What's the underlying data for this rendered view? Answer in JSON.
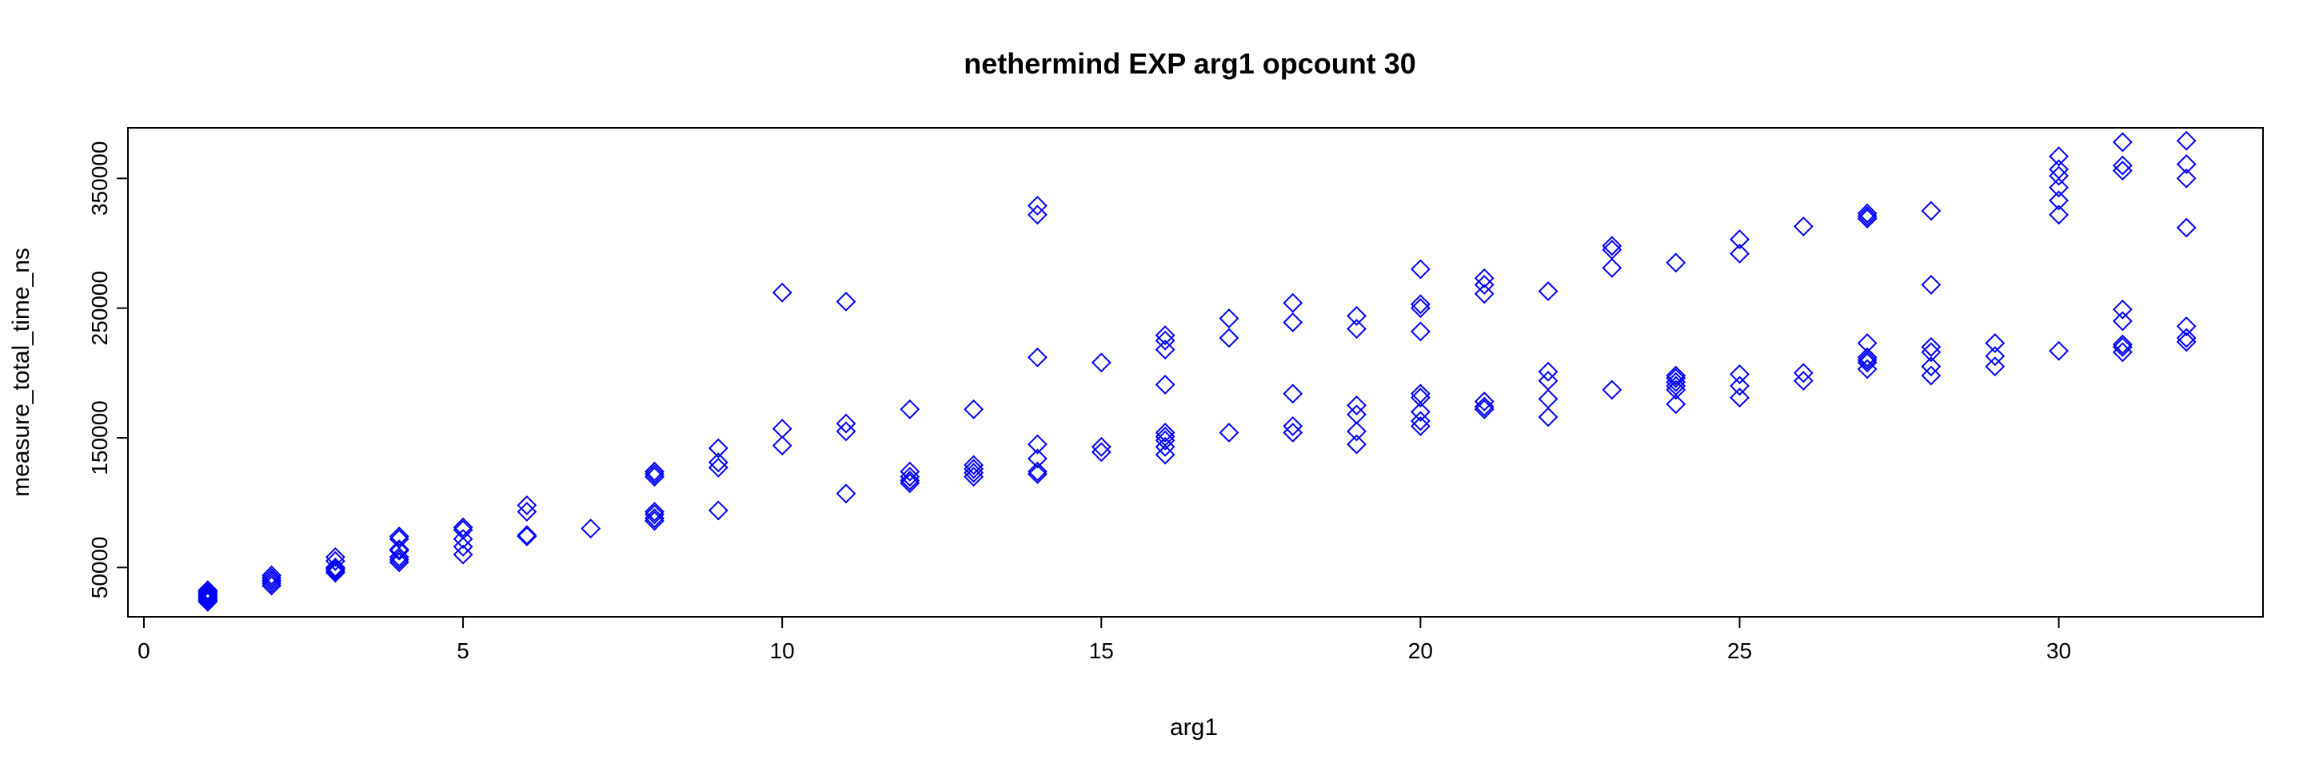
{
  "chart_data": {
    "type": "scatter",
    "title": "nethermind EXP arg1 opcount 30",
    "xlabel": "arg1",
    "ylabel": "measure_total_time_ns",
    "xlim": [
      -0.25,
      33.2
    ],
    "ylim": [
      12000,
      389000
    ],
    "x_ticks": [
      0,
      5,
      10,
      15,
      20,
      25,
      30
    ],
    "x_tick_labels": [
      "0",
      "5",
      "10",
      "15",
      "20",
      "25",
      "30"
    ],
    "y_ticks": [
      50000,
      150000,
      250000,
      350000
    ],
    "y_tick_labels": [
      "50000",
      "150000",
      "250000",
      "350000"
    ],
    "grid": false,
    "marker": "diamond",
    "marker_color": "#0000ff",
    "series": [
      {
        "points": [
          [
            1,
            23500
          ],
          [
            1,
            24500
          ],
          [
            1,
            25500
          ],
          [
            1,
            26500
          ],
          [
            1,
            27500
          ],
          [
            1,
            28500
          ],
          [
            1,
            29500
          ],
          [
            1,
            30500
          ],
          [
            1,
            31500
          ],
          [
            1,
            32500
          ],
          [
            2,
            36000
          ],
          [
            2,
            38000
          ],
          [
            2,
            40000
          ],
          [
            2,
            42000
          ],
          [
            2,
            44000
          ],
          [
            3,
            46000
          ],
          [
            3,
            47500
          ],
          [
            3,
            49000
          ],
          [
            3,
            50000
          ],
          [
            3,
            55000
          ],
          [
            3,
            58000
          ],
          [
            4,
            54000
          ],
          [
            4,
            56000
          ],
          [
            4,
            58000
          ],
          [
            4,
            63000
          ],
          [
            4,
            64000
          ],
          [
            4,
            72000
          ],
          [
            4,
            74000
          ],
          [
            5,
            60000
          ],
          [
            5,
            66000
          ],
          [
            5,
            72000
          ],
          [
            5,
            79000
          ],
          [
            5,
            81000
          ],
          [
            6,
            74000
          ],
          [
            6,
            75000
          ],
          [
            6,
            93000
          ],
          [
            6,
            98000
          ],
          [
            7,
            80000
          ],
          [
            8,
            86000
          ],
          [
            8,
            88000
          ],
          [
            8,
            91000
          ],
          [
            8,
            93000
          ],
          [
            8,
            120000
          ],
          [
            8,
            122000
          ],
          [
            8,
            124000
          ],
          [
            9,
            94000
          ],
          [
            9,
            127000
          ],
          [
            9,
            131000
          ],
          [
            9,
            142000
          ],
          [
            10,
            144000
          ],
          [
            10,
            157000
          ],
          [
            10,
            262000
          ],
          [
            11,
            107000
          ],
          [
            11,
            155000
          ],
          [
            11,
            161000
          ],
          [
            11,
            255000
          ],
          [
            12,
            115000
          ],
          [
            12,
            117000
          ],
          [
            12,
            120000
          ],
          [
            12,
            124000
          ],
          [
            12,
            172000
          ],
          [
            13,
            120000
          ],
          [
            13,
            123000
          ],
          [
            13,
            126000
          ],
          [
            13,
            129000
          ],
          [
            13,
            172000
          ],
          [
            14,
            122000
          ],
          [
            14,
            124000
          ],
          [
            14,
            134000
          ],
          [
            14,
            145000
          ],
          [
            14,
            212000
          ],
          [
            14,
            322000
          ],
          [
            14,
            329000
          ],
          [
            15,
            139000
          ],
          [
            15,
            143000
          ],
          [
            15,
            208000
          ],
          [
            16,
            137000
          ],
          [
            16,
            143000
          ],
          [
            16,
            148000
          ],
          [
            16,
            151000
          ],
          [
            16,
            154000
          ],
          [
            16,
            191000
          ],
          [
            16,
            218000
          ],
          [
            16,
            225000
          ],
          [
            16,
            229000
          ],
          [
            17,
            154000
          ],
          [
            17,
            227000
          ],
          [
            17,
            242000
          ],
          [
            18,
            154000
          ],
          [
            18,
            159000
          ],
          [
            18,
            184000
          ],
          [
            18,
            239000
          ],
          [
            18,
            254000
          ],
          [
            19,
            145000
          ],
          [
            19,
            155000
          ],
          [
            19,
            168000
          ],
          [
            19,
            175000
          ],
          [
            19,
            234000
          ],
          [
            19,
            244000
          ],
          [
            20,
            159000
          ],
          [
            20,
            163000
          ],
          [
            20,
            170000
          ],
          [
            20,
            181000
          ],
          [
            20,
            184000
          ],
          [
            20,
            232000
          ],
          [
            20,
            250000
          ],
          [
            20,
            253000
          ],
          [
            20,
            280000
          ],
          [
            21,
            172000
          ],
          [
            21,
            174000
          ],
          [
            21,
            178000
          ],
          [
            21,
            261000
          ],
          [
            21,
            268000
          ],
          [
            21,
            273000
          ],
          [
            22,
            166000
          ],
          [
            22,
            180000
          ],
          [
            22,
            194000
          ],
          [
            22,
            201000
          ],
          [
            22,
            263000
          ],
          [
            23,
            187000
          ],
          [
            23,
            281000
          ],
          [
            23,
            295000
          ],
          [
            23,
            298000
          ],
          [
            24,
            176000
          ],
          [
            24,
            187000
          ],
          [
            24,
            190000
          ],
          [
            24,
            193000
          ],
          [
            24,
            196000
          ],
          [
            24,
            198000
          ],
          [
            24,
            285000
          ],
          [
            25,
            181000
          ],
          [
            25,
            190000
          ],
          [
            25,
            199000
          ],
          [
            25,
            292000
          ],
          [
            25,
            303000
          ],
          [
            26,
            194000
          ],
          [
            26,
            200000
          ],
          [
            26,
            313000
          ],
          [
            27,
            203000
          ],
          [
            27,
            208000
          ],
          [
            27,
            210000
          ],
          [
            27,
            212000
          ],
          [
            27,
            223000
          ],
          [
            27,
            319000
          ],
          [
            27,
            321000
          ],
          [
            27,
            323000
          ],
          [
            28,
            198000
          ],
          [
            28,
            205000
          ],
          [
            28,
            216000
          ],
          [
            28,
            220000
          ],
          [
            28,
            268000
          ],
          [
            28,
            325000
          ],
          [
            29,
            205000
          ],
          [
            29,
            213000
          ],
          [
            29,
            223000
          ],
          [
            30,
            217000
          ],
          [
            30,
            322000
          ],
          [
            30,
            333000
          ],
          [
            30,
            343000
          ],
          [
            30,
            352000
          ],
          [
            30,
            357000
          ],
          [
            30,
            367000
          ],
          [
            31,
            216000
          ],
          [
            31,
            220000
          ],
          [
            31,
            222000
          ],
          [
            31,
            240000
          ],
          [
            31,
            249000
          ],
          [
            31,
            356000
          ],
          [
            31,
            360000
          ],
          [
            31,
            378000
          ],
          [
            32,
            224000
          ],
          [
            32,
            227000
          ],
          [
            32,
            236000
          ],
          [
            32,
            312000
          ],
          [
            32,
            350000
          ],
          [
            32,
            361000
          ],
          [
            32,
            379000
          ]
        ]
      }
    ]
  }
}
